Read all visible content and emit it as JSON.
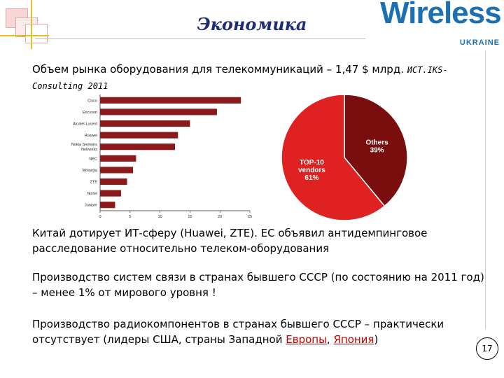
{
  "header": {
    "title": "Экономика",
    "logo_word": "Wireless",
    "logo_sub": "UKRAINE"
  },
  "subtitle": {
    "text": "Объем рынка оборудования для телекоммуникаций – 1,47 $ млрд.",
    "source": "ИСТ.IKS-Consulting 2011"
  },
  "chart_data": [
    {
      "type": "bar",
      "orientation": "horizontal",
      "categories": [
        "Cisco",
        "Ericsson",
        "Alcatel-Lucent",
        "Huawei",
        "Nokia Siemens Networks",
        "NEC",
        "Motorola",
        "ZTE",
        "Nortel",
        "Juniper"
      ],
      "values": [
        23.5,
        19.5,
        15,
        13,
        12.5,
        6,
        5.5,
        4.5,
        3.5,
        2.5
      ],
      "x_ticks": [
        0,
        5,
        10,
        15,
        20,
        25
      ],
      "xlim": [
        0,
        25
      ],
      "color": "#8b1a1a"
    },
    {
      "type": "pie",
      "slices": [
        {
          "name": "Others",
          "label": "39%",
          "value": 39,
          "color": "#7a0e0e"
        },
        {
          "name": "TOP-10 vendors",
          "label": "61%",
          "value": 61,
          "color": "#e02121"
        }
      ]
    }
  ],
  "paragraphs": {
    "p1": "Китай дотирует ИТ-сферу (Huawei, ZTE). ЕС объявил антидемпинговое расследование относительно телеком-оборудования",
    "p2": "Производство систем связи в странах бывшего СССР (по состоянию на 2011 год) – менее 1% от мирового уровня !",
    "p3_before": "Производство радиокомпонентов в странах бывшего СССР – практически отсутствует (лидеры США, страны Западной ",
    "p3_link1": "Европы",
    "p3_between": ", ",
    "p3_link2": "Япония",
    "p3_after": ")"
  },
  "page_number": "17"
}
